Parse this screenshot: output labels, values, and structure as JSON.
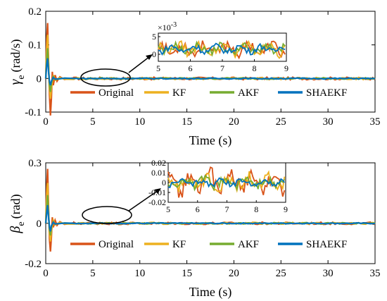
{
  "colors": {
    "Original": "#D95319",
    "KF": "#EDB120",
    "AKF": "#77AC30",
    "SHAEKF": "#0072BD"
  },
  "chart_data": [
    {
      "type": "line",
      "ylabel_symbol": "γ",
      "ylabel_sub": "e",
      "ylabel_unit": "(rad/s)",
      "xlabel": "Time (s)",
      "xlim": [
        0,
        35
      ],
      "ylim": [
        -0.1,
        0.2
      ],
      "xticks": [
        "0",
        "5",
        "10",
        "15",
        "20",
        "25",
        "30",
        "35"
      ],
      "yticks": [
        "-0.1",
        "0",
        "0.1",
        "0.2"
      ],
      "legend": [
        "Original",
        "KF",
        "AKF",
        "SHAEKF"
      ],
      "series": [
        {
          "name": "Original",
          "x": [
            0,
            0.1,
            0.2,
            0.3,
            0.4,
            0.5,
            0.6,
            0.7,
            0.8,
            1.0,
            1.2,
            1.5,
            2.0,
            3.0,
            35
          ],
          "values": [
            0,
            0.12,
            0.165,
            0.05,
            -0.05,
            -0.11,
            -0.06,
            0.02,
            -0.02,
            0.01,
            -0.008,
            0.005,
            -0.003,
            0.002,
            0
          ]
        },
        {
          "name": "KF",
          "x": [
            0,
            0.1,
            0.2,
            0.3,
            0.4,
            0.5,
            0.6,
            0.8,
            1.0,
            1.5,
            2.0,
            35
          ],
          "values": [
            0,
            0.08,
            0.13,
            0.04,
            -0.03,
            -0.06,
            -0.03,
            0.01,
            -0.005,
            0.003,
            -0.002,
            0
          ]
        },
        {
          "name": "AKF",
          "x": [
            0,
            0.1,
            0.2,
            0.3,
            0.4,
            0.5,
            0.6,
            0.8,
            1.0,
            2.0,
            35
          ],
          "values": [
            0,
            0.06,
            0.09,
            0.03,
            -0.02,
            -0.04,
            -0.015,
            0.005,
            -0.003,
            0.001,
            0
          ]
        },
        {
          "name": "SHAEKF",
          "x": [
            0,
            0.1,
            0.2,
            0.3,
            0.4,
            0.5,
            0.6,
            0.8,
            1.0,
            2.0,
            35
          ],
          "values": [
            0,
            0.04,
            0.06,
            0.02,
            -0.01,
            -0.02,
            -0.008,
            0.003,
            -0.002,
            0.001,
            0
          ]
        }
      ],
      "inset": {
        "xlim": [
          5,
          9
        ],
        "ylim": [
          -2,
          6
        ],
        "xticks": [
          "5",
          "6",
          "7",
          "8",
          "9"
        ],
        "yticks": [
          "0",
          "5"
        ],
        "exponent_base": "×10",
        "exponent_power": "-3",
        "amplitudes_units_1e-3": {
          "Original": 2.2,
          "KF": 2.0,
          "AKF": 1.6,
          "SHAEKF": 1.3
        }
      }
    },
    {
      "type": "line",
      "ylabel_symbol": "β",
      "ylabel_sub": "e",
      "ylabel_unit": "(rad)",
      "xlabel": "Time (s)",
      "xlim": [
        0,
        35
      ],
      "ylim": [
        -0.2,
        0.3
      ],
      "xticks": [
        "0",
        "5",
        "10",
        "15",
        "20",
        "25",
        "30",
        "35"
      ],
      "yticks": [
        "-0.2",
        "0",
        "0.3"
      ],
      "legend": [
        "Original",
        "KF",
        "AKF",
        "SHAEKF"
      ],
      "series": [
        {
          "name": "Original",
          "x": [
            0,
            0.1,
            0.2,
            0.3,
            0.4,
            0.5,
            0.6,
            0.7,
            0.8,
            1.0,
            1.2,
            1.5,
            2.0,
            3.0,
            35
          ],
          "values": [
            0,
            0.18,
            0.27,
            0.08,
            -0.08,
            -0.14,
            -0.07,
            0.03,
            -0.02,
            0.015,
            -0.01,
            0.008,
            -0.005,
            0.003,
            0
          ]
        },
        {
          "name": "KF",
          "x": [
            0,
            0.1,
            0.2,
            0.3,
            0.4,
            0.5,
            0.6,
            0.8,
            1.0,
            1.5,
            2.0,
            35
          ],
          "values": [
            0,
            0.12,
            0.2,
            0.05,
            -0.05,
            -0.09,
            -0.04,
            0.015,
            -0.008,
            0.005,
            -0.003,
            0
          ]
        },
        {
          "name": "AKF",
          "x": [
            0,
            0.1,
            0.2,
            0.3,
            0.4,
            0.5,
            0.6,
            0.8,
            1.0,
            2.0,
            35
          ],
          "values": [
            0,
            0.08,
            0.14,
            0.04,
            -0.03,
            -0.06,
            -0.02,
            0.008,
            -0.004,
            0.002,
            0
          ]
        },
        {
          "name": "SHAEKF",
          "x": [
            0,
            0.1,
            0.2,
            0.3,
            0.4,
            0.5,
            0.6,
            0.8,
            1.0,
            2.0,
            35
          ],
          "values": [
            0,
            0.05,
            0.09,
            0.03,
            -0.02,
            -0.04,
            -0.012,
            0.005,
            -0.003,
            0.001,
            0
          ]
        }
      ],
      "inset": {
        "xlim": [
          5,
          9
        ],
        "ylim": [
          -0.02,
          0.02
        ],
        "xticks": [
          "5",
          "6",
          "7",
          "8",
          "9"
        ],
        "yticks": [
          "0.02",
          "0.01",
          "0",
          "-0.01",
          "-0.02"
        ],
        "amplitudes": {
          "Original": 0.013,
          "KF": 0.009,
          "AKF": 0.006,
          "SHAEKF": 0.004
        }
      }
    }
  ]
}
